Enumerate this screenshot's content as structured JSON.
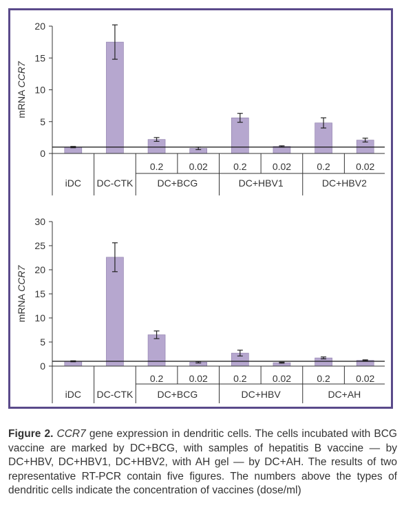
{
  "colors": {
    "frame": "#5a4a8a",
    "bar": "#b6a7cf",
    "bar_edge": "#8a7aa8",
    "axis": "#333333"
  },
  "chart_data": [
    {
      "type": "bar",
      "title": "",
      "ylabel_prefix": "mRNA ",
      "ylabel_italic": "CCR7",
      "ylim": [
        0,
        20
      ],
      "yticks": [
        0,
        5,
        10,
        15,
        20
      ],
      "baseline": 1,
      "bars": [
        {
          "value": 1.0,
          "err": 0.1
        },
        {
          "value": 17.5,
          "err": 2.7
        },
        {
          "value": 2.2,
          "err": 0.3
        },
        {
          "value": 0.8,
          "err": 0.2
        },
        {
          "value": 5.6,
          "err": 0.7
        },
        {
          "value": 1.1,
          "err": 0.1
        },
        {
          "value": 4.8,
          "err": 0.8
        },
        {
          "value": 2.1,
          "err": 0.3
        }
      ],
      "concentrations": [
        "",
        "",
        "0.2",
        "0.02",
        "0.2",
        "0.02",
        "0.2",
        "0.02"
      ],
      "groups": [
        {
          "label": "iDC",
          "span": [
            0,
            0
          ]
        },
        {
          "label": "DC-CTK",
          "span": [
            1,
            1
          ]
        },
        {
          "label": "DC+BCG",
          "span": [
            2,
            3
          ]
        },
        {
          "label": "DC+HBV1",
          "span": [
            4,
            5
          ]
        },
        {
          "label": "DC+HBV2",
          "span": [
            6,
            7
          ]
        }
      ],
      "grid": false
    },
    {
      "type": "bar",
      "title": "",
      "ylabel_prefix": "mRNA ",
      "ylabel_italic": "CCR7",
      "ylim": [
        0,
        30
      ],
      "yticks": [
        0,
        5,
        10,
        15,
        20,
        25,
        30
      ],
      "baseline": 1,
      "bars": [
        {
          "value": 1.0,
          "err": 0.1
        },
        {
          "value": 22.6,
          "err": 3.0
        },
        {
          "value": 6.5,
          "err": 0.8
        },
        {
          "value": 0.8,
          "err": 0.15
        },
        {
          "value": 2.7,
          "err": 0.6
        },
        {
          "value": 0.7,
          "err": 0.1
        },
        {
          "value": 1.7,
          "err": 0.2
        },
        {
          "value": 1.2,
          "err": 0.1
        }
      ],
      "concentrations": [
        "",
        "",
        "0.2",
        "0.02",
        "0.2",
        "0.02",
        "0.2",
        "0.02"
      ],
      "groups": [
        {
          "label": "iDC",
          "span": [
            0,
            0
          ]
        },
        {
          "label": "DC-CTK",
          "span": [
            1,
            1
          ]
        },
        {
          "label": "DC+BCG",
          "span": [
            2,
            3
          ]
        },
        {
          "label": "DC+HBV",
          "span": [
            4,
            5
          ]
        },
        {
          "label": "DC+AH",
          "span": [
            6,
            7
          ]
        }
      ],
      "grid": false
    }
  ],
  "caption": {
    "label": "Figure 2.",
    "gene": "CCR7",
    "text": " gene expression in dendritic cells. The cells incubated with BCG vaccine are marked by DC+BCG, with samples of hepatitis B vaccine — by DC+HBV, DC+HBV1, DC+HBV2, with AH gel — by DC+AH. The results of two representative RT-PCR contain five figures. The numbers above the types of dendritic cells indicate the concentration of vaccines (dose/ml)"
  }
}
